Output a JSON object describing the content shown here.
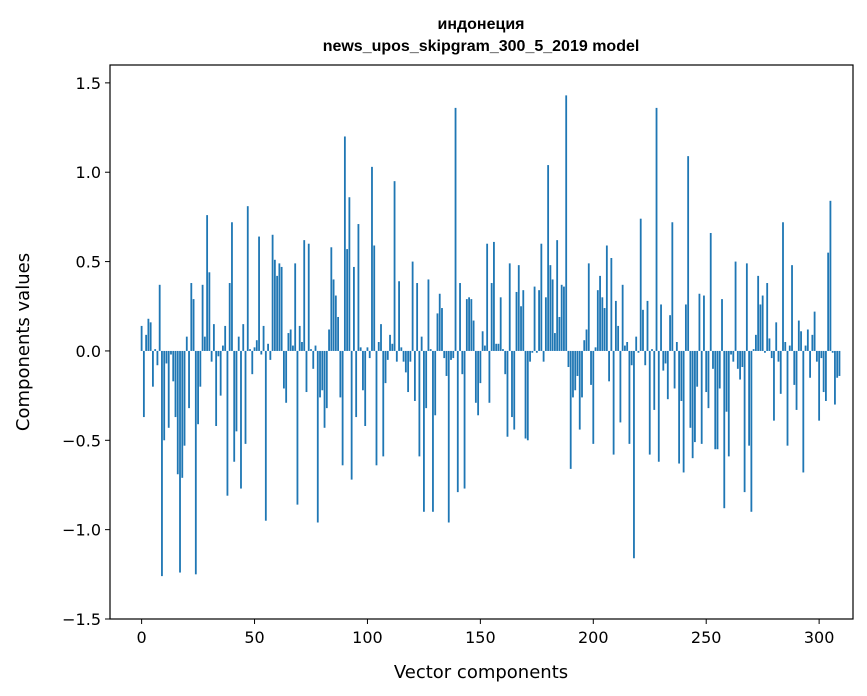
{
  "chart_data": {
    "type": "bar",
    "title": "индонеция",
    "subtitle": "news_upos_skipgram_300_5_2019 model",
    "xlabel": "Vector components",
    "ylabel": "Components values",
    "xlim": [
      -14,
      315
    ],
    "ylim": [
      -1.5,
      1.6
    ],
    "xticks": [
      0,
      50,
      100,
      150,
      200,
      250,
      300
    ],
    "xtick_labels": [
      "0",
      "50",
      "100",
      "150",
      "200",
      "250",
      "300"
    ],
    "yticks": [
      -1.5,
      -1.0,
      -0.5,
      0.0,
      0.5,
      1.0,
      1.5
    ],
    "ytick_labels": [
      "−1.5",
      "−1.0",
      "−0.5",
      "0.0",
      "0.5",
      "1.0",
      "1.5"
    ],
    "bar_color": "#1f77b4",
    "x_start": 0,
    "values": [
      0.14,
      -0.37,
      0.09,
      0.18,
      0.16,
      -0.2,
      0.01,
      -0.08,
      0.37,
      -1.26,
      -0.5,
      -0.07,
      -0.43,
      -0.02,
      -0.17,
      -0.37,
      -0.69,
      -1.24,
      -0.71,
      -0.53,
      0.08,
      -0.32,
      0.38,
      0.29,
      -1.25,
      -0.41,
      -0.2,
      0.37,
      0.08,
      0.76,
      0.44,
      -0.06,
      0.15,
      -0.42,
      -0.03,
      -0.25,
      0.03,
      0.14,
      -0.81,
      0.38,
      0.72,
      -0.62,
      -0.45,
      0.08,
      -0.77,
      0.15,
      -0.52,
      0.81,
      0.01,
      -0.13,
      0.02,
      0.06,
      0.64,
      -0.02,
      0.14,
      -0.95,
      0.04,
      -0.05,
      0.65,
      0.51,
      0.42,
      0.49,
      0.47,
      -0.21,
      -0.29,
      0.1,
      0.12,
      0.03,
      0.49,
      -0.86,
      0.14,
      0.05,
      0.62,
      -0.23,
      0.6,
      0.01,
      -0.1,
      0.03,
      -0.96,
      -0.26,
      -0.22,
      -0.43,
      -0.32,
      0.12,
      0.58,
      0.4,
      0.31,
      0.19,
      -0.26,
      -0.64,
      1.2,
      0.57,
      0.86,
      -0.72,
      0.47,
      -0.37,
      0.71,
      0.02,
      -0.22,
      -0.42,
      0.02,
      -0.04,
      1.03,
      0.59,
      -0.64,
      0.05,
      0.15,
      -0.59,
      -0.18,
      -0.05,
      0.09,
      0.04,
      0.95,
      -0.06,
      0.39,
      0.02,
      -0.06,
      -0.12,
      -0.23,
      -0.06,
      0.5,
      -0.28,
      0.38,
      -0.59,
      0.08,
      -0.9,
      -0.32,
      0.4,
      0.01,
      -0.9,
      -0.36,
      0.21,
      0.32,
      0.24,
      -0.04,
      -0.14,
      -0.96,
      -0.05,
      -0.04,
      1.36,
      -0.79,
      0.38,
      -0.13,
      -0.77,
      0.29,
      0.3,
      0.29,
      0.17,
      -0.29,
      -0.36,
      -0.18,
      0.11,
      0.03,
      0.6,
      -0.29,
      0.38,
      0.61,
      0.04,
      0.04,
      0.3,
      0.01,
      -0.13,
      -0.48,
      0.49,
      -0.37,
      -0.44,
      0.33,
      0.48,
      0.25,
      0.34,
      -0.49,
      -0.5,
      -0.06,
      -0.01,
      0.36,
      -0.01,
      0.34,
      0.6,
      -0.06,
      0.3,
      1.04,
      0.48,
      0.4,
      0.1,
      0.62,
      0.19,
      0.37,
      0.36,
      1.43,
      -0.09,
      -0.66,
      -0.26,
      -0.22,
      -0.14,
      -0.44,
      -0.26,
      0.06,
      0.12,
      0.49,
      -0.19,
      -0.52,
      0.02,
      0.34,
      0.42,
      0.3,
      0.24,
      0.59,
      -0.17,
      0.52,
      -0.58,
      0.28,
      0.14,
      -0.4,
      0.37,
      0.03,
      0.05,
      -0.52,
      -0.08,
      -1.16,
      0.08,
      -0.01,
      0.74,
      0.23,
      -0.08,
      0.28,
      -0.58,
      0.01,
      -0.33,
      1.36,
      -0.62,
      0.26,
      -0.11,
      -0.07,
      -0.27,
      0.2,
      0.72,
      -0.21,
      0.05,
      -0.63,
      -0.28,
      -0.68,
      0.26,
      1.09,
      -0.43,
      -0.6,
      -0.51,
      -0.2,
      0.32,
      -0.52,
      0.31,
      -0.23,
      -0.32,
      0.66,
      -0.1,
      -0.55,
      -0.55,
      -0.21,
      0.29,
      -0.88,
      -0.34,
      -0.59,
      -0.02,
      -0.06,
      0.5,
      -0.1,
      -0.16,
      -0.09,
      -0.79,
      0.49,
      -0.53,
      -0.9,
      0.01,
      0.09,
      0.42,
      0.26,
      0.31,
      -0.01,
      0.38,
      0.07,
      -0.04,
      -0.39,
      0.16,
      -0.06,
      -0.24,
      0.72,
      0.05,
      -0.53,
      0.03,
      0.48,
      -0.19,
      -0.33,
      0.17,
      0.11,
      -0.68,
      0.03,
      0.12,
      -0.15,
      0.09,
      0.22,
      -0.06,
      -0.39,
      -0.04,
      -0.23,
      -0.28,
      0.55,
      0.84,
      -0.01,
      -0.3,
      -0.15,
      -0.14
    ]
  }
}
